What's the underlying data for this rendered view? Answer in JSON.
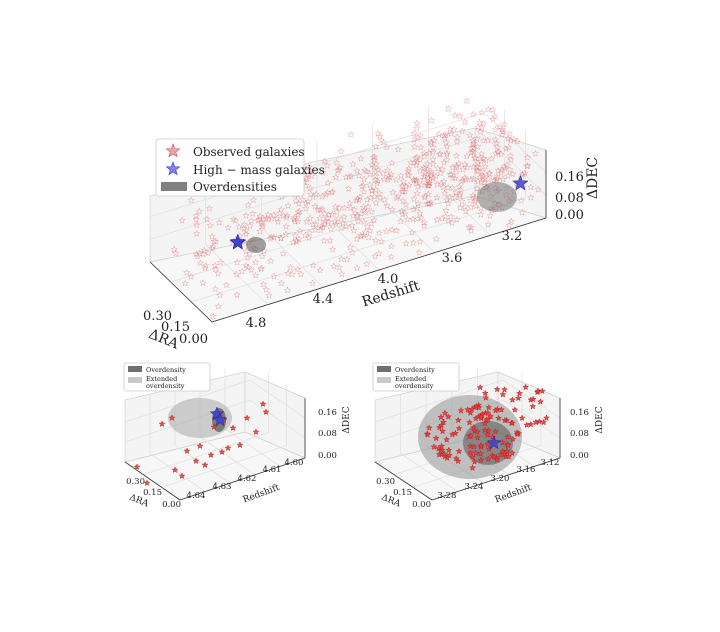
{
  "chart_data": [
    {
      "type": "scatter",
      "projection": "3d",
      "xlabel": "Redshift",
      "ylabel": "ΔRA",
      "zlabel": "ΔDEC",
      "xticks": [
        "4.8",
        "4.4",
        "4.0",
        "3.6",
        "3.2"
      ],
      "yticks": [
        "0.30",
        "0.15",
        "0.00"
      ],
      "zticks": [
        "0.16",
        "0.08",
        "0.00"
      ],
      "xlim": [
        4.95,
        3.1
      ],
      "ylim": [
        0.0,
        0.33
      ],
      "zlim": [
        0.0,
        0.19
      ],
      "grid": true,
      "legend": {
        "placement": "top-left",
        "entries": [
          {
            "label": "Observed galaxies",
            "marker": "star",
            "color": "#d9534f"
          },
          {
            "label": "High − mass galaxies",
            "marker": "star",
            "color": "#3b3bd6"
          },
          {
            "label": "Overdensities",
            "marker": "patch",
            "color": "#808080"
          }
        ]
      },
      "series": [
        {
          "name": "Observed galaxies",
          "color": "#e06060",
          "count": 650,
          "x_range": [
            4.95,
            3.15
          ],
          "y_range": [
            0.0,
            0.33
          ],
          "z_range": [
            0.0,
            0.19
          ]
        },
        {
          "name": "High − mass galaxies",
          "color": "#3b3bd6",
          "points": [
            [
              4.63,
              0.17,
              0.085
            ],
            [
              4.62,
              0.18,
              0.08
            ],
            [
              3.19,
              0.05,
              0.085
            ]
          ]
        },
        {
          "name": "Overdensities",
          "color": "#808080",
          "regions": [
            [
              4.625,
              0.17,
              0.08,
              0.012
            ],
            [
              3.2,
              0.05,
              0.09,
              0.025
            ]
          ]
        }
      ]
    },
    {
      "type": "scatter",
      "projection": "3d",
      "xlabel": "Redshift",
      "ylabel": "ΔRA",
      "zlabel": "ΔDEC",
      "xticks": [
        "4.64",
        "4.63",
        "4.62",
        "4.61",
        "4.60"
      ],
      "yticks": [
        "0.30",
        "0.15",
        "0.00"
      ],
      "zticks": [
        "0.16",
        "0.08",
        "0.00"
      ],
      "grid": true,
      "legend": {
        "placement": "top-left",
        "entries": [
          {
            "label": "Overdensity",
            "marker": "patch",
            "color": "#707070"
          },
          {
            "label": "Extended overdensity",
            "marker": "patch",
            "color": "#c8c8c8"
          }
        ]
      },
      "series": [
        {
          "name": "Observed galaxies",
          "color": "#e04040",
          "count": 22
        },
        {
          "name": "High − mass galaxies",
          "color": "#3b3bd6",
          "count": 2
        }
      ]
    },
    {
      "type": "scatter",
      "projection": "3d",
      "xlabel": "Redshift",
      "ylabel": "ΔRA",
      "zlabel": "ΔDEC",
      "xticks": [
        "3.28",
        "3.24",
        "3.20",
        "3.16",
        "3.12"
      ],
      "yticks": [
        "0.30",
        "0.15",
        "0.00"
      ],
      "zticks": [
        "0.16",
        "0.08",
        "0.00"
      ],
      "grid": true,
      "legend": {
        "placement": "top-left",
        "entries": [
          {
            "label": "Overdensity",
            "marker": "patch",
            "color": "#707070"
          },
          {
            "label": "Extended overdensity",
            "marker": "patch",
            "color": "#c8c8c8"
          }
        ]
      },
      "series": [
        {
          "name": "Observed galaxies",
          "color": "#e04040",
          "count": 130
        },
        {
          "name": "High − mass galaxies",
          "color": "#3b3bd6",
          "count": 1
        }
      ]
    }
  ]
}
